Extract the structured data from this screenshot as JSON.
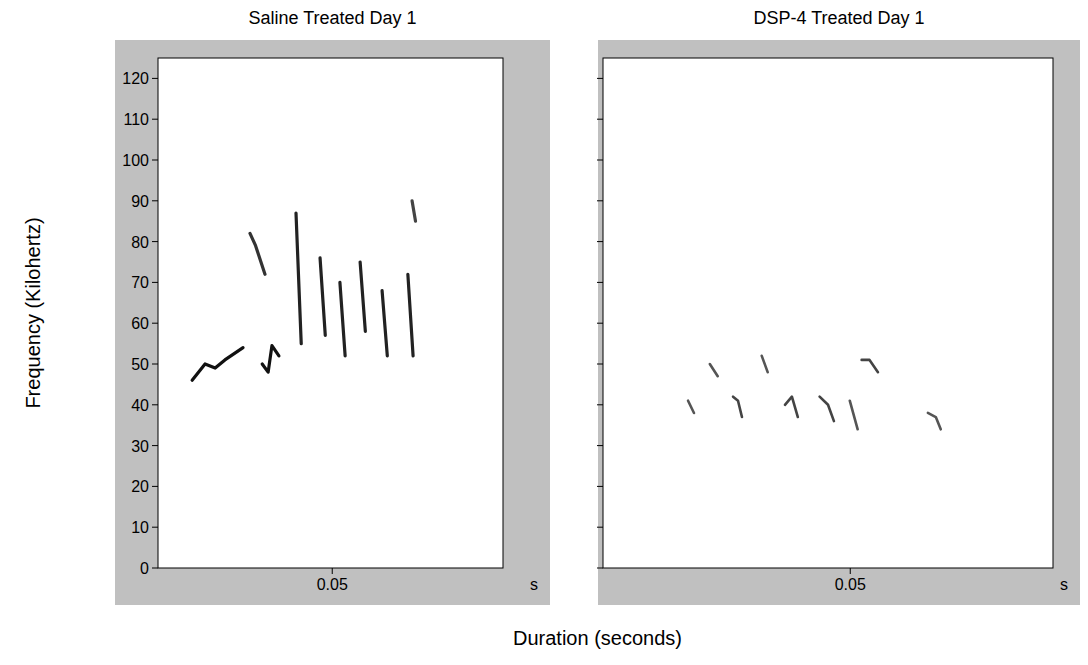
{
  "chart_data": [
    {
      "type": "spectrogram",
      "title": "Saline Treated Day 1",
      "xlabel": "s",
      "xlim": [
        0,
        0.099
      ],
      "xticks": [
        0.05
      ],
      "ylim": [
        0,
        125
      ],
      "yticks": [
        0,
        10,
        20,
        30,
        40,
        50,
        60,
        70,
        80,
        90,
        100,
        110,
        120
      ],
      "tick_labels": true,
      "grid": false,
      "series": [
        {
          "color": "#111111",
          "x": [
            0.0098,
            0.0135,
            0.0164,
            0.0192,
            0.0244
          ],
          "values": [
            46,
            50,
            49,
            51,
            54
          ]
        },
        {
          "color": "#111111",
          "x": [
            0.0299,
            0.0316,
            0.0327,
            0.0347
          ],
          "values": [
            50,
            48,
            54.5,
            52
          ]
        },
        {
          "color": "#333333",
          "x": [
            0.0264,
            0.028,
            0.0307
          ],
          "values": [
            82,
            79,
            72
          ]
        },
        {
          "color": "#222222",
          "x": [
            0.0396,
            0.0411
          ],
          "values": [
            87,
            55
          ]
        },
        {
          "color": "#222222",
          "x": [
            0.0465,
            0.048
          ],
          "values": [
            76,
            57
          ]
        },
        {
          "color": "#222222",
          "x": [
            0.0522,
            0.0537
          ],
          "values": [
            70,
            52
          ]
        },
        {
          "color": "#222222",
          "x": [
            0.058,
            0.0595
          ],
          "values": [
            75,
            58
          ]
        },
        {
          "color": "#222222",
          "x": [
            0.0643,
            0.0658
          ],
          "values": [
            68,
            52
          ]
        },
        {
          "color": "#222222",
          "x": [
            0.0717,
            0.0732
          ],
          "values": [
            72,
            52
          ]
        },
        {
          "color": "#444444",
          "x": [
            0.0729,
            0.0739
          ],
          "values": [
            90,
            85
          ]
        }
      ]
    },
    {
      "type": "spectrogram",
      "title": "DSP-4 Treated Day 1",
      "xlabel": "s",
      "xlim": [
        0,
        0.091
      ],
      "xticks": [
        0.05
      ],
      "ylim": [
        0,
        125
      ],
      "yticks": [
        0,
        10,
        20,
        30,
        40,
        50,
        60,
        70,
        80,
        90,
        100,
        110,
        120
      ],
      "tick_labels": "x",
      "grid": false,
      "series": [
        {
          "color": "#555555",
          "x": [
            0.0172,
            0.0184
          ],
          "values": [
            41,
            38
          ]
        },
        {
          "color": "#555555",
          "x": [
            0.0216,
            0.0232
          ],
          "values": [
            50,
            47
          ]
        },
        {
          "color": "#444444",
          "x": [
            0.0263,
            0.0273,
            0.0281
          ],
          "values": [
            42,
            41,
            37
          ]
        },
        {
          "color": "#555555",
          "x": [
            0.0321,
            0.0333
          ],
          "values": [
            52,
            48
          ]
        },
        {
          "color": "#444444",
          "x": [
            0.0368,
            0.0382,
            0.0394
          ],
          "values": [
            40,
            42,
            37
          ]
        },
        {
          "color": "#444444",
          "x": [
            0.0438,
            0.0455,
            0.0467
          ],
          "values": [
            42,
            40,
            36
          ]
        },
        {
          "color": "#555555",
          "x": [
            0.0499,
            0.0515
          ],
          "values": [
            41,
            34
          ]
        },
        {
          "color": "#444444",
          "x": [
            0.0523,
            0.0539,
            0.0556
          ],
          "values": [
            51,
            51,
            48
          ]
        },
        {
          "color": "#555555",
          "x": [
            0.0657,
            0.0673,
            0.0683
          ],
          "values": [
            38,
            37,
            34
          ]
        }
      ]
    }
  ],
  "xlabel": "Duration (seconds)",
  "ylabel": "Frequency (Kilohertz)"
}
